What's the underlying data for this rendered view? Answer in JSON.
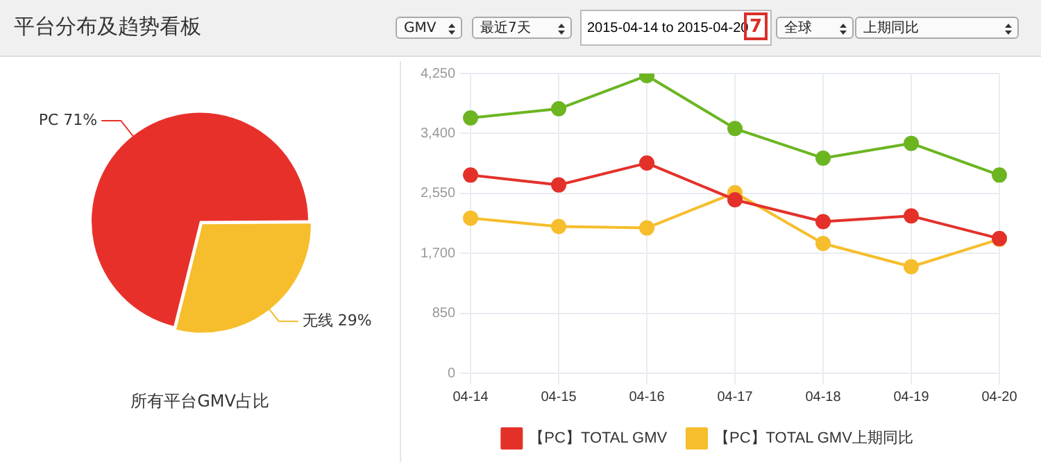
{
  "chart_data": [
    {
      "type": "other",
      "title": "平台分布及趋势看板",
      "annotations": [
        "GMV",
        "最近7天",
        "2015-04-14 to 2015-04-20",
        "7",
        "全球",
        "上期同比"
      ]
    },
    {
      "type": "pie",
      "title": "所有平台GMV占比",
      "categories": [
        "PC",
        "无线"
      ],
      "values": [
        71,
        29
      ],
      "colors": [
        "#e8302a",
        "#f6be2c"
      ],
      "value_labels": [
        "71%",
        "29%"
      ]
    },
    {
      "type": "line",
      "categories": [
        "04-14",
        "04-15",
        "04-16",
        "04-17",
        "04-18",
        "04-19",
        "04-20"
      ],
      "series": [
        {
          "name": "【PC】TOTAL GMV",
          "color": "#e3312a",
          "values": [
            2810,
            2670,
            2980,
            2460,
            2150,
            2230,
            1910
          ]
        },
        {
          "name": "【PC】TOTAL GMV上期同比",
          "color": "#f6be2c",
          "values": [
            2200,
            2080,
            2060,
            2560,
            1840,
            1510,
            1900
          ]
        },
        {
          "color": "#6cb521",
          "values": [
            3620,
            3750,
            4220,
            3470,
            3050,
            3260,
            2810
          ]
        }
      ],
      "ylim": [
        0,
        4250
      ],
      "yticks": [
        0,
        {
          "value": 850,
          "label": "850"
        },
        {
          "value": 1700,
          "label": "1,700"
        },
        {
          "value": 2550,
          "label": "2,550"
        },
        {
          "value": 3400,
          "label": "3,400"
        },
        {
          "value": 4250,
          "label": "4,250"
        }
      ],
      "grid": true,
      "legend": "bottom",
      "marker": "circle",
      "line_style": "solid"
    }
  ]
}
